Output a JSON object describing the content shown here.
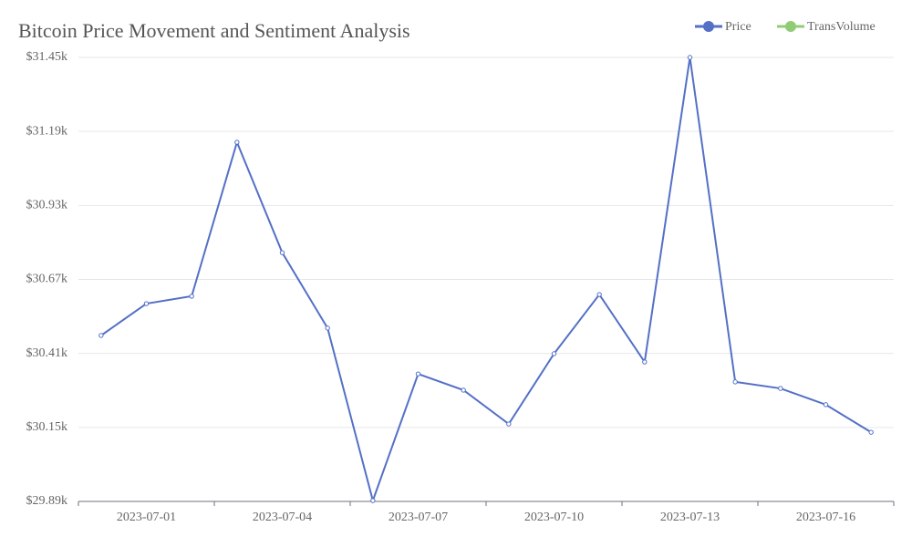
{
  "chart_data": {
    "type": "line",
    "title": "Bitcoin Price Movement and Sentiment Analysis",
    "categories": [
      null,
      "2023-07-01",
      null,
      null,
      "2023-07-04",
      null,
      null,
      "2023-07-07",
      null,
      null,
      "2023-07-10",
      null,
      null,
      "2023-07-13",
      null,
      null,
      "2023-07-16",
      null
    ],
    "series": [
      {
        "name": "Price",
        "color": "#5470c6",
        "values": [
          30473,
          30585,
          30611,
          31152,
          30764,
          30499,
          29893,
          30338,
          30281,
          30162,
          30409,
          30617,
          30380,
          31450,
          30310,
          30287,
          30230,
          30133
        ]
      },
      {
        "name": "TransVolume",
        "color": "#91cc75",
        "values": [
          null,
          null,
          null,
          null,
          null,
          null,
          null,
          null,
          null,
          null,
          null,
          null,
          null,
          null,
          null,
          null,
          null,
          null
        ]
      }
    ],
    "ylim": [
      29890,
      31450
    ],
    "yticks": [
      {
        "value": 29890,
        "label": "$29.89k"
      },
      {
        "value": 30150,
        "label": "$30.15k"
      },
      {
        "value": 30410,
        "label": "$30.41k"
      },
      {
        "value": 30670,
        "label": "$30.67k"
      },
      {
        "value": 30930,
        "label": "$30.93k"
      },
      {
        "value": 31190,
        "label": "$31.19k"
      },
      {
        "value": 31450,
        "label": "$31.45k"
      }
    ],
    "grid": true,
    "legend": "top-right"
  }
}
